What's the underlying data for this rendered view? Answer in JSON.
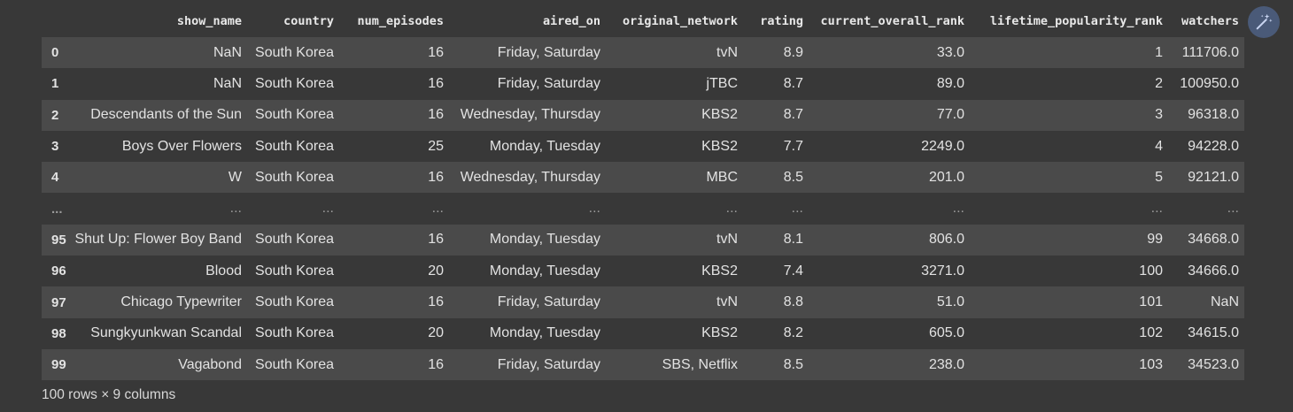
{
  "table": {
    "columns": [
      "",
      "show_name",
      "country",
      "num_episodes",
      "aired_on",
      "original_network",
      "rating",
      "current_overall_rank",
      "lifetime_popularity_rank",
      "watchers"
    ],
    "rows": [
      [
        "0",
        "NaN",
        "South Korea",
        "16",
        "Friday, Saturday",
        "tvN",
        "8.9",
        "33.0",
        "1",
        "111706.0"
      ],
      [
        "1",
        "NaN",
        "South Korea",
        "16",
        "Friday, Saturday",
        "jTBC",
        "8.7",
        "89.0",
        "2",
        "100950.0"
      ],
      [
        "2",
        "Descendants of the Sun",
        "South Korea",
        "16",
        "Wednesday, Thursday",
        "KBS2",
        "8.7",
        "77.0",
        "3",
        "96318.0"
      ],
      [
        "3",
        "Boys Over Flowers",
        "South Korea",
        "25",
        "Monday, Tuesday",
        "KBS2",
        "7.7",
        "2249.0",
        "4",
        "94228.0"
      ],
      [
        "4",
        "W",
        "South Korea",
        "16",
        "Wednesday, Thursday",
        "MBC",
        "8.5",
        "201.0",
        "5",
        "92121.0"
      ],
      [
        "...",
        "...",
        "...",
        "...",
        "...",
        "...",
        "...",
        "...",
        "...",
        "..."
      ],
      [
        "95",
        "Shut Up: Flower Boy Band",
        "South Korea",
        "16",
        "Monday, Tuesday",
        "tvN",
        "8.1",
        "806.0",
        "99",
        "34668.0"
      ],
      [
        "96",
        "Blood",
        "South Korea",
        "20",
        "Monday, Tuesday",
        "KBS2",
        "7.4",
        "3271.0",
        "100",
        "34666.0"
      ],
      [
        "97",
        "Chicago Typewriter",
        "South Korea",
        "16",
        "Friday, Saturday",
        "tvN",
        "8.8",
        "51.0",
        "101",
        "NaN"
      ],
      [
        "98",
        "Sungkyunkwan Scandal",
        "South Korea",
        "20",
        "Monday, Tuesday",
        "KBS2",
        "8.2",
        "605.0",
        "102",
        "34615.0"
      ],
      [
        "99",
        "Vagabond",
        "South Korea",
        "16",
        "Friday, Saturday",
        "SBS, Netflix",
        "8.5",
        "238.0",
        "103",
        "34523.0"
      ]
    ]
  },
  "footer": "100 rows × 9 columns",
  "magic_button": {
    "icon": "magic-wand-icon"
  }
}
